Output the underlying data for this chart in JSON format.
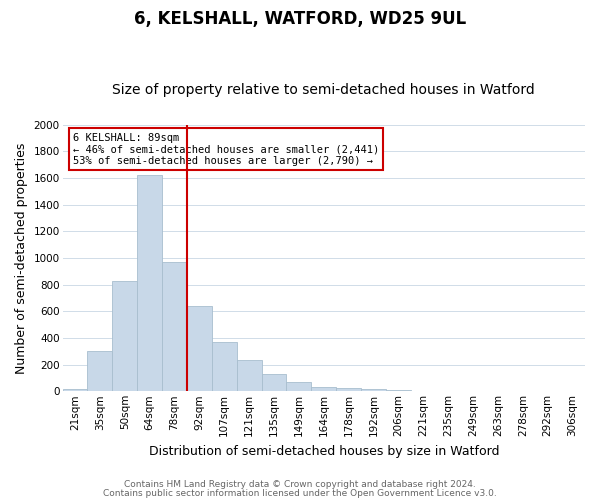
{
  "title": "6, KELSHALL, WATFORD, WD25 9UL",
  "subtitle": "Size of property relative to semi-detached houses in Watford",
  "xlabel": "Distribution of semi-detached houses by size in Watford",
  "ylabel": "Number of semi-detached properties",
  "bar_color": "#c8d8e8",
  "bar_edge_color": "#a8bece",
  "categories": [
    "21sqm",
    "35sqm",
    "50sqm",
    "64sqm",
    "78sqm",
    "92sqm",
    "107sqm",
    "121sqm",
    "135sqm",
    "149sqm",
    "164sqm",
    "178sqm",
    "192sqm",
    "206sqm",
    "221sqm",
    "235sqm",
    "249sqm",
    "263sqm",
    "278sqm",
    "292sqm",
    "306sqm"
  ],
  "values": [
    20,
    300,
    830,
    1620,
    970,
    640,
    370,
    235,
    130,
    70,
    35,
    25,
    20,
    10,
    5,
    3,
    2,
    1,
    1,
    0,
    5
  ],
  "ylim": [
    0,
    2000
  ],
  "yticks": [
    0,
    200,
    400,
    600,
    800,
    1000,
    1200,
    1400,
    1600,
    1800,
    2000
  ],
  "property_label": "6 KELSHALL: 89sqm",
  "pct_smaller": 46,
  "pct_larger": 53,
  "n_smaller": 2441,
  "n_larger": 2790,
  "vline_x": 3.5,
  "annotation_box_color": "#ffffff",
  "annotation_box_edge": "#cc0000",
  "vline_color": "#cc0000",
  "footer1": "Contains HM Land Registry data © Crown copyright and database right 2024.",
  "footer2": "Contains public sector information licensed under the Open Government Licence v3.0.",
  "bg_color": "#ffffff",
  "grid_color": "#d0dce8",
  "title_fontsize": 12,
  "subtitle_fontsize": 10,
  "axis_label_fontsize": 9,
  "tick_fontsize": 7.5,
  "footer_fontsize": 6.5
}
